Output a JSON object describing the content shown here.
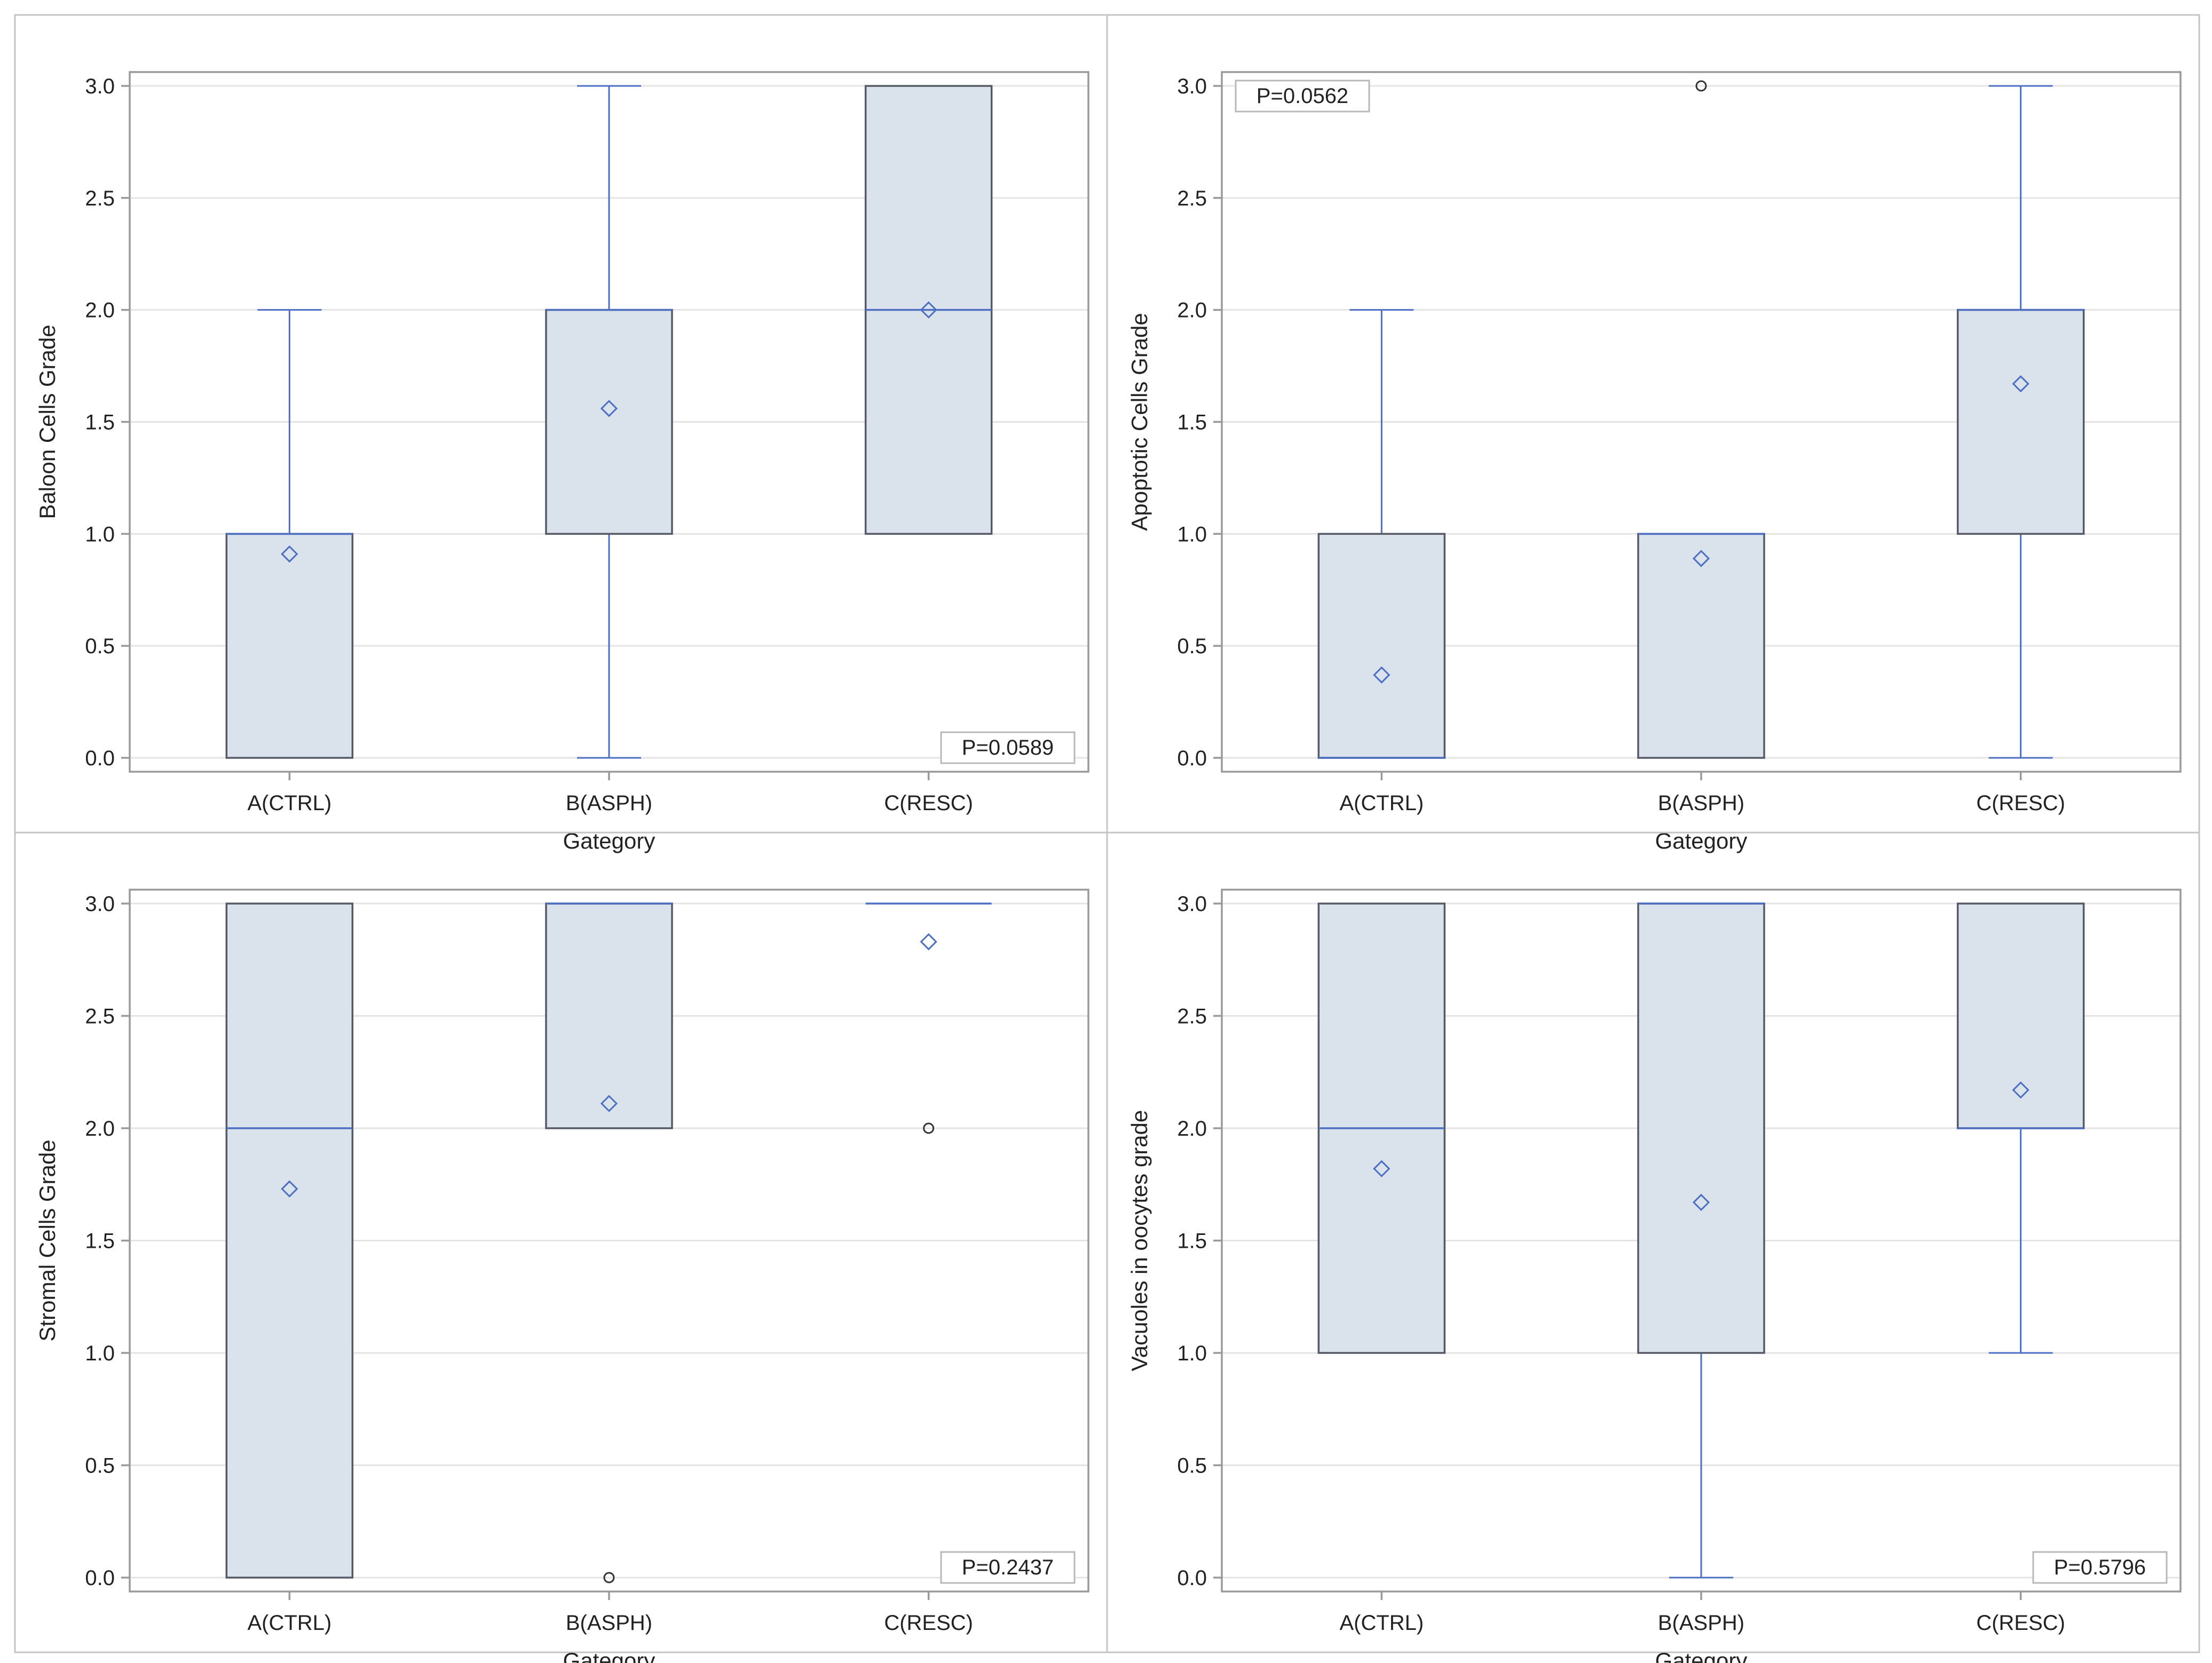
{
  "style": {
    "box_fill": "#dae2ec",
    "box_edge": "#555a66",
    "accent": "#4c6fc4",
    "grid": "#e4e4e4",
    "axis": "#9a9a9a",
    "outlier": "#333333"
  },
  "chart_data": [
    {
      "type": "box",
      "xlabel": "Gategory",
      "ylabel": "Baloon Cells Grade",
      "categories": [
        "A(CTRL)",
        "B(ASPH)",
        "C(RESC)"
      ],
      "ylim": [
        0,
        3
      ],
      "yticks": [
        0,
        0.5,
        1,
        1.5,
        2,
        2.5,
        3
      ],
      "ytick_labels": [
        "0.0",
        "0.5",
        "1.0",
        "1.5",
        "2.0",
        "2.5",
        "3.0"
      ],
      "grid": true,
      "annotation": "P=0.0589",
      "annotation_position": "bottom-right",
      "boxes": [
        {
          "q1": 0,
          "median": 1,
          "q3": 1,
          "whisker_low": 0,
          "whisker_high": 2,
          "mean": 0.91,
          "outliers": []
        },
        {
          "q1": 1,
          "median": 2,
          "q3": 2,
          "whisker_low": 0,
          "whisker_high": 3,
          "mean": 1.56,
          "outliers": []
        },
        {
          "q1": 1,
          "median": 2,
          "q3": 3,
          "whisker_low": 1,
          "whisker_high": 3,
          "mean": 2.0,
          "outliers": []
        }
      ]
    },
    {
      "type": "box",
      "xlabel": "Gategory",
      "ylabel": "Apoptotic Cells Grade",
      "categories": [
        "A(CTRL)",
        "B(ASPH)",
        "C(RESC)"
      ],
      "ylim": [
        0,
        3
      ],
      "yticks": [
        0,
        0.5,
        1,
        1.5,
        2,
        2.5,
        3
      ],
      "ytick_labels": [
        "0.0",
        "0.5",
        "1.0",
        "1.5",
        "2.0",
        "2.5",
        "3.0"
      ],
      "grid": true,
      "annotation": "P=0.0562",
      "annotation_position": "top-left",
      "boxes": [
        {
          "q1": 0,
          "median": 0,
          "q3": 1,
          "whisker_low": 0,
          "whisker_high": 2,
          "mean": 0.37,
          "outliers": []
        },
        {
          "q1": 0,
          "median": 1,
          "q3": 1,
          "whisker_low": 0,
          "whisker_high": 1,
          "mean": 0.89,
          "outliers": [
            3
          ]
        },
        {
          "q1": 1,
          "median": 2,
          "q3": 2,
          "whisker_low": 0,
          "whisker_high": 3,
          "mean": 1.67,
          "outliers": []
        }
      ]
    },
    {
      "type": "box",
      "xlabel": "Gategory",
      "ylabel": "Stromal Cells Grade",
      "categories": [
        "A(CTRL)",
        "B(ASPH)",
        "C(RESC)"
      ],
      "ylim": [
        0,
        3
      ],
      "yticks": [
        0,
        0.5,
        1,
        1.5,
        2,
        2.5,
        3
      ],
      "ytick_labels": [
        "0.0",
        "0.5",
        "1.0",
        "1.5",
        "2.0",
        "2.5",
        "3.0"
      ],
      "grid": true,
      "annotation": "P=0.2437",
      "annotation_position": "bottom-right",
      "boxes": [
        {
          "q1": 0,
          "median": 2,
          "q3": 3,
          "whisker_low": 0,
          "whisker_high": 3,
          "mean": 1.73,
          "outliers": []
        },
        {
          "q1": 2,
          "median": 3,
          "q3": 3,
          "whisker_low": 2,
          "whisker_high": 3,
          "mean": 2.11,
          "outliers": [
            0
          ]
        },
        {
          "q1": 3,
          "median": 3,
          "q3": 3,
          "whisker_low": 3,
          "whisker_high": 3,
          "mean": 2.83,
          "outliers": [
            2
          ]
        }
      ]
    },
    {
      "type": "box",
      "xlabel": "Gategory",
      "ylabel": "Vacuoles in oocytes grade",
      "categories": [
        "A(CTRL)",
        "B(ASPH)",
        "C(RESC)"
      ],
      "ylim": [
        0,
        3
      ],
      "yticks": [
        0,
        0.5,
        1,
        1.5,
        2,
        2.5,
        3
      ],
      "ytick_labels": [
        "0.0",
        "0.5",
        "1.0",
        "1.5",
        "2.0",
        "2.5",
        "3.0"
      ],
      "grid": true,
      "annotation": "P=0.5796",
      "annotation_position": "bottom-right",
      "boxes": [
        {
          "q1": 1,
          "median": 2,
          "q3": 3,
          "whisker_low": 1,
          "whisker_high": 3,
          "mean": 1.82,
          "outliers": []
        },
        {
          "q1": 1,
          "median": 3,
          "q3": 3,
          "whisker_low": 0,
          "whisker_high": 3,
          "mean": 1.67,
          "outliers": []
        },
        {
          "q1": 2,
          "median": 2,
          "q3": 3,
          "whisker_low": 1,
          "whisker_high": 3,
          "mean": 2.17,
          "outliers": []
        }
      ]
    }
  ]
}
